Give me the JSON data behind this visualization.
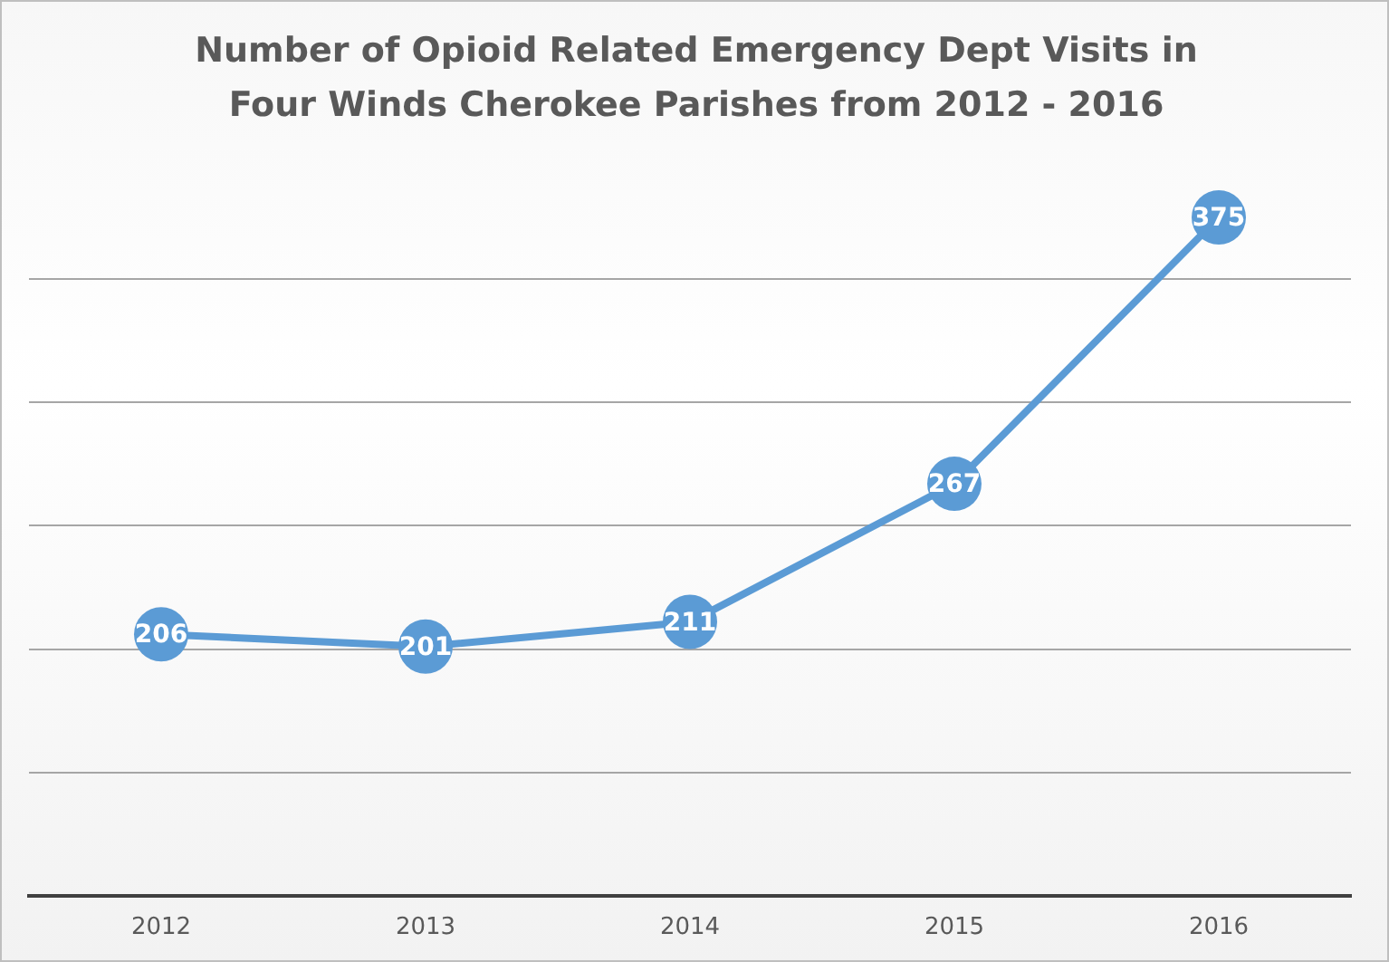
{
  "chart_data": {
    "type": "line",
    "title": "Number of Opioid Related Emergency Dept Visits in Four Winds Cherokee Parishes from 2012 - 2016",
    "categories": [
      "2012",
      "2013",
      "2014",
      "2015",
      "2016"
    ],
    "values": [
      206,
      201,
      211,
      267,
      375
    ],
    "color": "#5b9bd5",
    "yticks": [
      {
        "value": 100,
        "label": null
      },
      {
        "value": 150,
        "label": null
      },
      {
        "value": 200,
        "label": null
      },
      {
        "value": 250,
        "label": null
      },
      {
        "value": 300,
        "label": null
      },
      {
        "value": 350,
        "label": null
      }
    ],
    "grid": "y",
    "tick_labels": "x",
    "data_labels": true,
    "marker": "circle",
    "line_style": "solid"
  }
}
